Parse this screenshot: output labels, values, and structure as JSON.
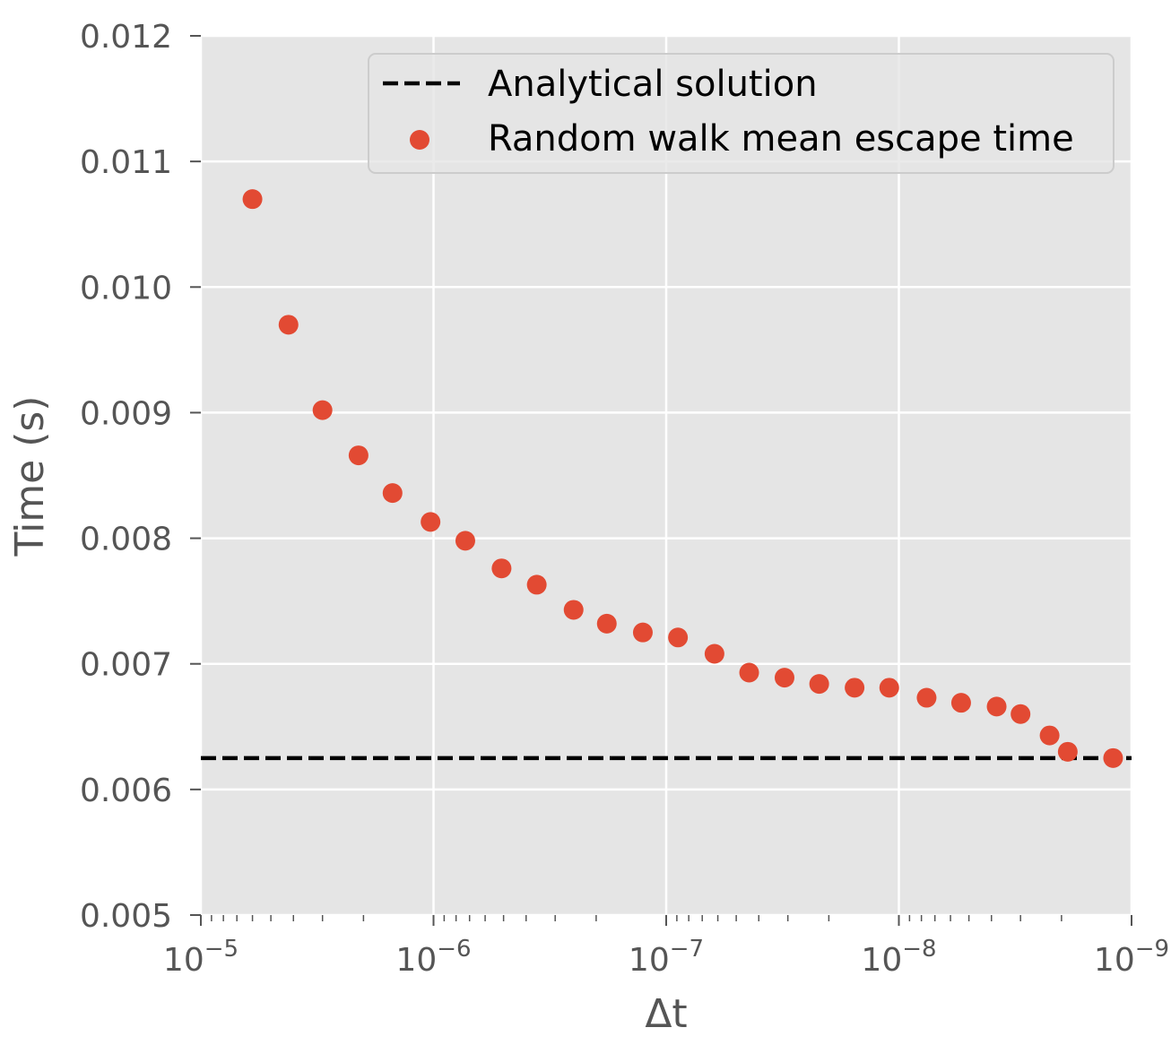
{
  "chart_data": {
    "type": "scatter",
    "title": "",
    "xlabel": "Δt",
    "ylabel": "Time (s)",
    "x_scale": "log",
    "x_axis_reversed": true,
    "xlim": [
      1e-05,
      1e-09
    ],
    "ylim": [
      0.005,
      0.012
    ],
    "grid": true,
    "legend_position": "top-right",
    "x_ticks": [
      {
        "base": "10",
        "exp": "−5"
      },
      {
        "base": "10",
        "exp": "−6"
      },
      {
        "base": "10",
        "exp": "−7"
      },
      {
        "base": "10",
        "exp": "−8"
      },
      {
        "base": "10",
        "exp": "−9"
      }
    ],
    "y_ticks": [
      "0.005",
      "0.006",
      "0.007",
      "0.008",
      "0.009",
      "0.010",
      "0.011",
      "0.012"
    ],
    "series": [
      {
        "name": "Analytical solution",
        "kind": "line",
        "style": "dashed",
        "color": "#000000",
        "y": 0.00625
      },
      {
        "name": "Random walk mean escape time",
        "kind": "scatter",
        "color": "#E24A33",
        "points": [
          {
            "x": 6e-06,
            "y": 0.0107
          },
          {
            "x": 4.2e-06,
            "y": 0.0097
          },
          {
            "x": 3e-06,
            "y": 0.00902
          },
          {
            "x": 2.1e-06,
            "y": 0.00866
          },
          {
            "x": 1.5e-06,
            "y": 0.00836
          },
          {
            "x": 1.03e-06,
            "y": 0.00813
          },
          {
            "x": 7.3e-07,
            "y": 0.00798
          },
          {
            "x": 5.1e-07,
            "y": 0.00776
          },
          {
            "x": 3.6e-07,
            "y": 0.00763
          },
          {
            "x": 2.5e-07,
            "y": 0.00743
          },
          {
            "x": 1.8e-07,
            "y": 0.00732
          },
          {
            "x": 1.26e-07,
            "y": 0.00725
          },
          {
            "x": 8.9e-08,
            "y": 0.00721
          },
          {
            "x": 6.2e-08,
            "y": 0.00708
          },
          {
            "x": 4.4e-08,
            "y": 0.00693
          },
          {
            "x": 3.1e-08,
            "y": 0.00689
          },
          {
            "x": 2.2e-08,
            "y": 0.00684
          },
          {
            "x": 1.55e-08,
            "y": 0.00681
          },
          {
            "x": 1.1e-08,
            "y": 0.00681
          },
          {
            "x": 7.6e-09,
            "y": 0.00673
          },
          {
            "x": 5.4e-09,
            "y": 0.00669
          },
          {
            "x": 3.8e-09,
            "y": 0.00666
          },
          {
            "x": 3e-09,
            "y": 0.0066
          },
          {
            "x": 2.25e-09,
            "y": 0.00643
          },
          {
            "x": 1.88e-09,
            "y": 0.0063
          },
          {
            "x": 1.2e-09,
            "y": 0.00625
          }
        ]
      }
    ]
  }
}
